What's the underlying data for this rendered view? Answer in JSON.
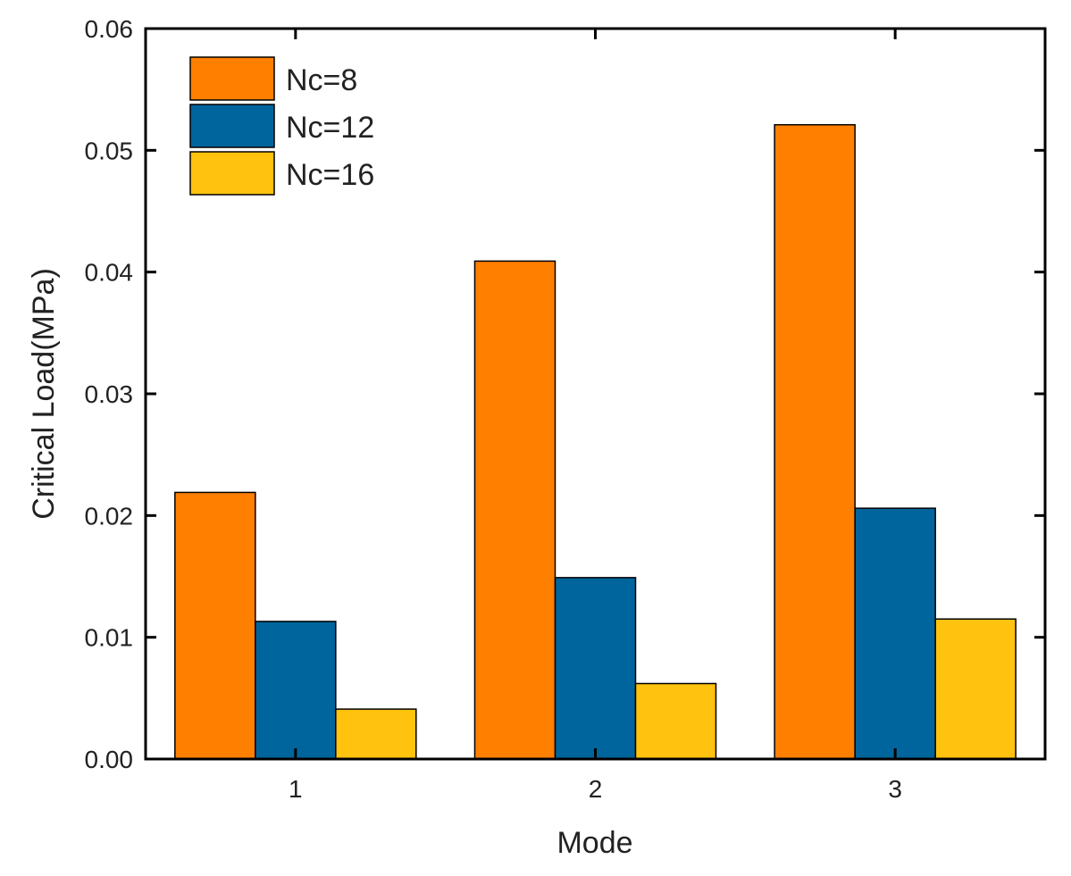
{
  "chart_data": {
    "type": "bar",
    "title": "",
    "xlabel": "Mode",
    "ylabel": "Critical Load(MPa)",
    "categories": [
      "1",
      "2",
      "3"
    ],
    "ylim": [
      0,
      0.06
    ],
    "yticks": [
      "0.00",
      "0.01",
      "0.02",
      "0.03",
      "0.04",
      "0.05",
      "0.06"
    ],
    "ytick_values": [
      0,
      0.01,
      0.02,
      0.03,
      0.04,
      0.05,
      0.06
    ],
    "grid": false,
    "legend_position": "top-left",
    "series": [
      {
        "name": "Nc=8",
        "color": "#ff7f00",
        "values": [
          0.0219,
          0.0409,
          0.0521
        ]
      },
      {
        "name": "Nc=12",
        "color": "#00659c",
        "values": [
          0.0113,
          0.0149,
          0.0206
        ]
      },
      {
        "name": "Nc=16",
        "color": "#ffc20e",
        "values": [
          0.0041,
          0.0062,
          0.0115
        ]
      }
    ]
  }
}
